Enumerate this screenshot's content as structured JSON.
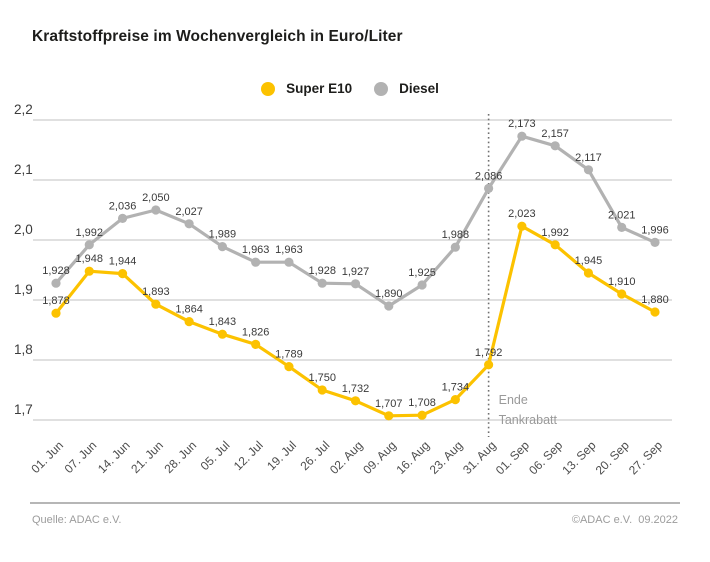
{
  "title": "Kraftstoffpreise im Wochenvergleich in Euro/Liter",
  "legend": [
    {
      "label": "Super E10",
      "color": "#fcc200"
    },
    {
      "label": "Diesel",
      "color": "#b2b2b2"
    }
  ],
  "chart_data": {
    "type": "line",
    "title": "Kraftstoffpreise im Wochenvergleich in Euro/Liter",
    "categories": [
      "01. Jun",
      "07. Jun",
      "14. Jun",
      "21. Jun",
      "28. Jun",
      "05. Jul",
      "12. Jul",
      "19. Jul",
      "26. Jul",
      "02. Aug",
      "09. Aug",
      "16. Aug",
      "23. Aug",
      "31. Aug",
      "01. Sep",
      "06. Sep",
      "13. Sep",
      "20. Sep",
      "27. Sep"
    ],
    "series": [
      {
        "name": "Super E10",
        "color": "#fcc200",
        "values": [
          1.878,
          1.948,
          1.944,
          1.893,
          1.864,
          1.843,
          1.826,
          1.789,
          1.75,
          1.732,
          1.707,
          1.708,
          1.734,
          1.792,
          2.023,
          1.992,
          1.945,
          1.91,
          1.88
        ]
      },
      {
        "name": "Diesel",
        "color": "#b2b2b2",
        "values": [
          1.928,
          1.992,
          2.036,
          2.05,
          2.027,
          1.989,
          1.963,
          1.963,
          1.928,
          1.927,
          1.89,
          1.925,
          1.988,
          2.086,
          2.173,
          2.157,
          2.117,
          2.021,
          1.996
        ]
      }
    ],
    "ylim": [
      1.7,
      2.2
    ],
    "yticks": [
      "2,2",
      "2,1",
      "2,0",
      "1,9",
      "1,8",
      "1,7"
    ],
    "grid": "horizontal",
    "legend_position": "top",
    "decimal_separator": ",",
    "annotation": {
      "lines": [
        "Ende",
        "Tankrabatt"
      ],
      "category": "31. Aug",
      "line_style": "dotted"
    }
  },
  "colors": {
    "grid": "#cdcdcd",
    "value_label": "#3a3a3a",
    "axis_label": "#4d4d4d",
    "annotation_text": "#9a9a9a",
    "annotation_line": "#6f6f6f"
  },
  "footer": {
    "source": "Quelle: ADAC e.V.",
    "copyright": "©ADAC e.V.  09.2022"
  }
}
